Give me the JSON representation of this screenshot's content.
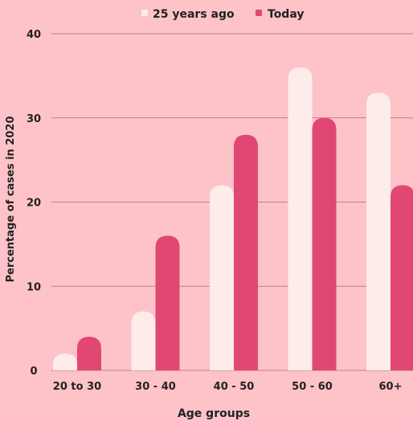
{
  "chart_data": {
    "type": "bar",
    "categories": [
      "20 to 30",
      "30 - 40",
      "40 - 50",
      "50 - 60",
      "60+"
    ],
    "series": [
      {
        "name": "25 years ago",
        "values": [
          2,
          7,
          22,
          36,
          33
        ]
      },
      {
        "name": "Today",
        "values": [
          4,
          16,
          28,
          30,
          22
        ]
      }
    ],
    "title": "",
    "xlabel": "Age groups",
    "ylabel": "Percentage of cases in 2020",
    "ylim": [
      0,
      40
    ],
    "yticks": [
      "0",
      "10",
      "20",
      "30",
      "40"
    ],
    "grid": true,
    "legend": "top-center",
    "colors": {
      "background": "#fdc3c9",
      "series_1": "#fdecea",
      "series_2": "#e04873",
      "gridline": "#b06873",
      "text": "#222222"
    }
  }
}
